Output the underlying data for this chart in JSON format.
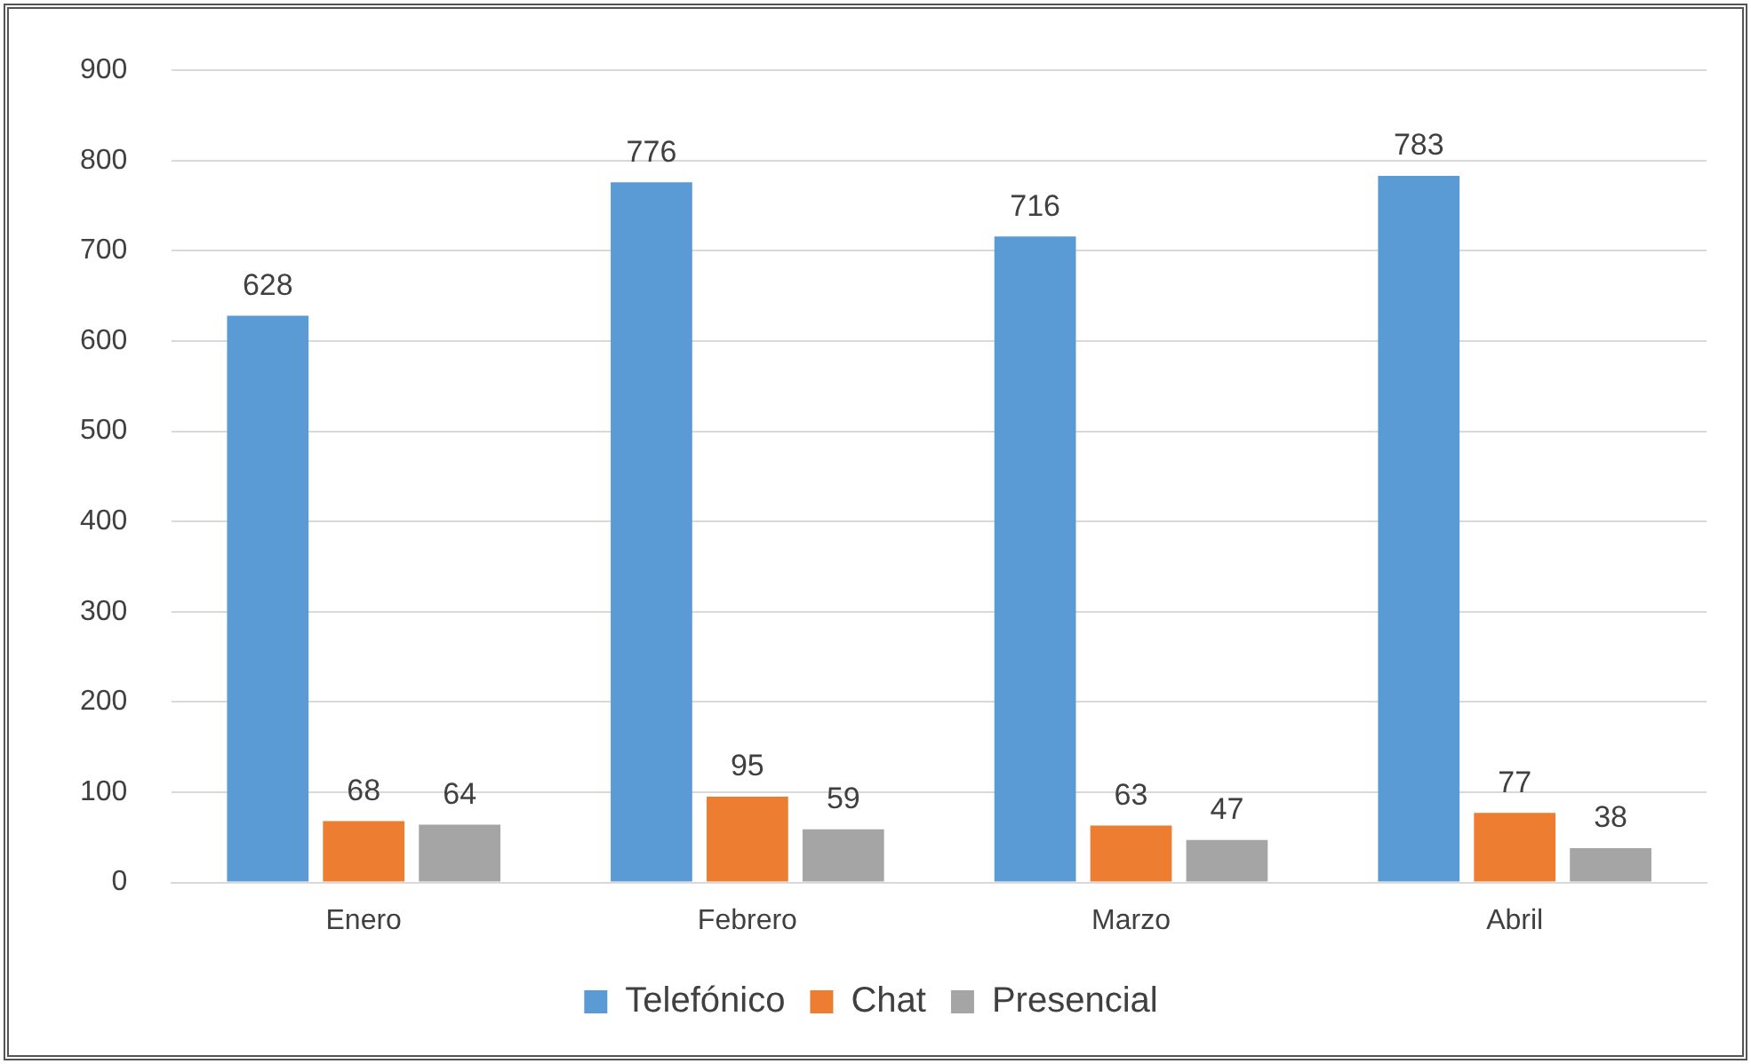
{
  "chart_data": {
    "type": "bar",
    "categories": [
      "Enero",
      "Febrero",
      "Marzo",
      "Abril"
    ],
    "series": [
      {
        "name": "Telefónico",
        "color": "#5b9bd5",
        "values": [
          628,
          776,
          716,
          783
        ]
      },
      {
        "name": "Chat",
        "color": "#ed7d31",
        "values": [
          68,
          95,
          63,
          77
        ]
      },
      {
        "name": "Presencial",
        "color": "#a5a5a5",
        "values": [
          64,
          59,
          47,
          38
        ]
      }
    ],
    "ylim": [
      0,
      900
    ],
    "yticks": [
      0,
      100,
      200,
      300,
      400,
      500,
      600,
      700,
      800,
      900
    ],
    "grid": "y",
    "legend": "bottom",
    "data_labels": true
  }
}
